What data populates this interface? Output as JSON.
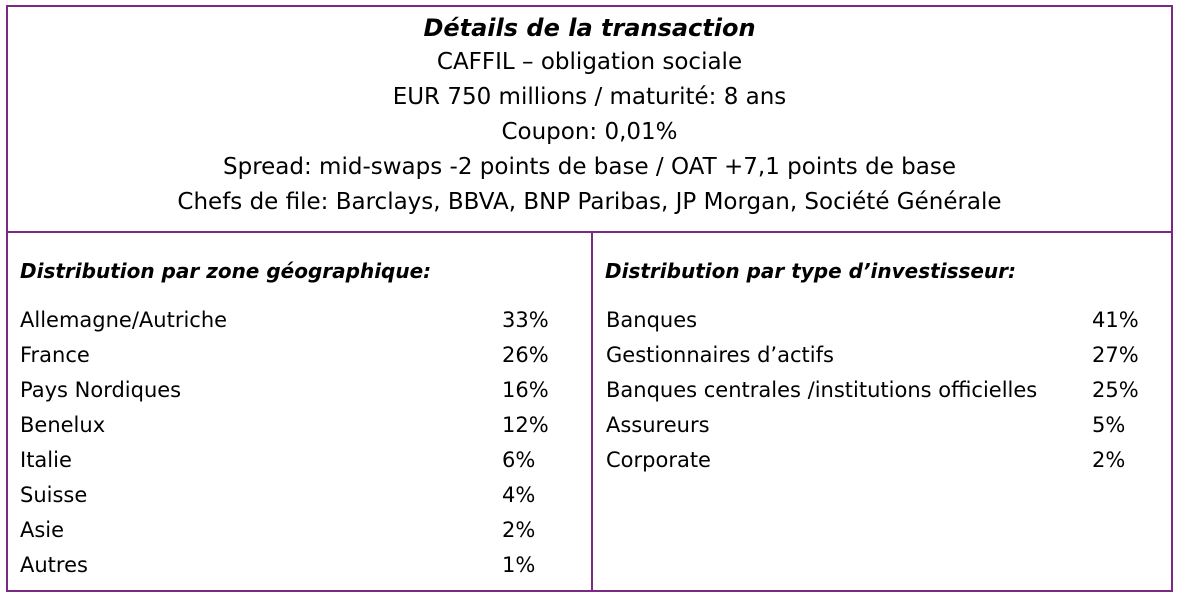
{
  "header": {
    "title": "Détails de la transaction",
    "lines": [
      "CAFFIL – obligation sociale",
      "EUR 750 millions / maturité: 8 ans",
      "Coupon: 0,01%",
      "Spread: mid-swaps -2 points de base / OAT +7,1 points de base",
      "Chefs de file: Barclays, BBVA, BNP Paribas, JP Morgan, Société Générale"
    ]
  },
  "geo": {
    "heading": "Distribution par zone géographique:",
    "rows": [
      {
        "label": "Allemagne/Autriche",
        "value": "33%"
      },
      {
        "label": "France",
        "value": "26%"
      },
      {
        "label": "Pays Nordiques",
        "value": "16%"
      },
      {
        "label": "Benelux",
        "value": "12%"
      },
      {
        "label": "Italie",
        "value": "6%"
      },
      {
        "label": "Suisse",
        "value": "4%"
      },
      {
        "label": "Asie",
        "value": "2%"
      },
      {
        "label": "Autres",
        "value": "1%"
      }
    ]
  },
  "investor": {
    "heading": "Distribution par type d’investisseur:",
    "rows": [
      {
        "label": "Banques",
        "value": "41%"
      },
      {
        "label": "Gestionnaires d’actifs",
        "value": "27%"
      },
      {
        "label": "Banques centrales /institutions officielles",
        "value": "25%"
      },
      {
        "label": "Assureurs",
        "value": "5%"
      },
      {
        "label": "Corporate",
        "value": "2%"
      }
    ]
  },
  "colors": {
    "border": "#7b2a83",
    "text": "#000000"
  }
}
